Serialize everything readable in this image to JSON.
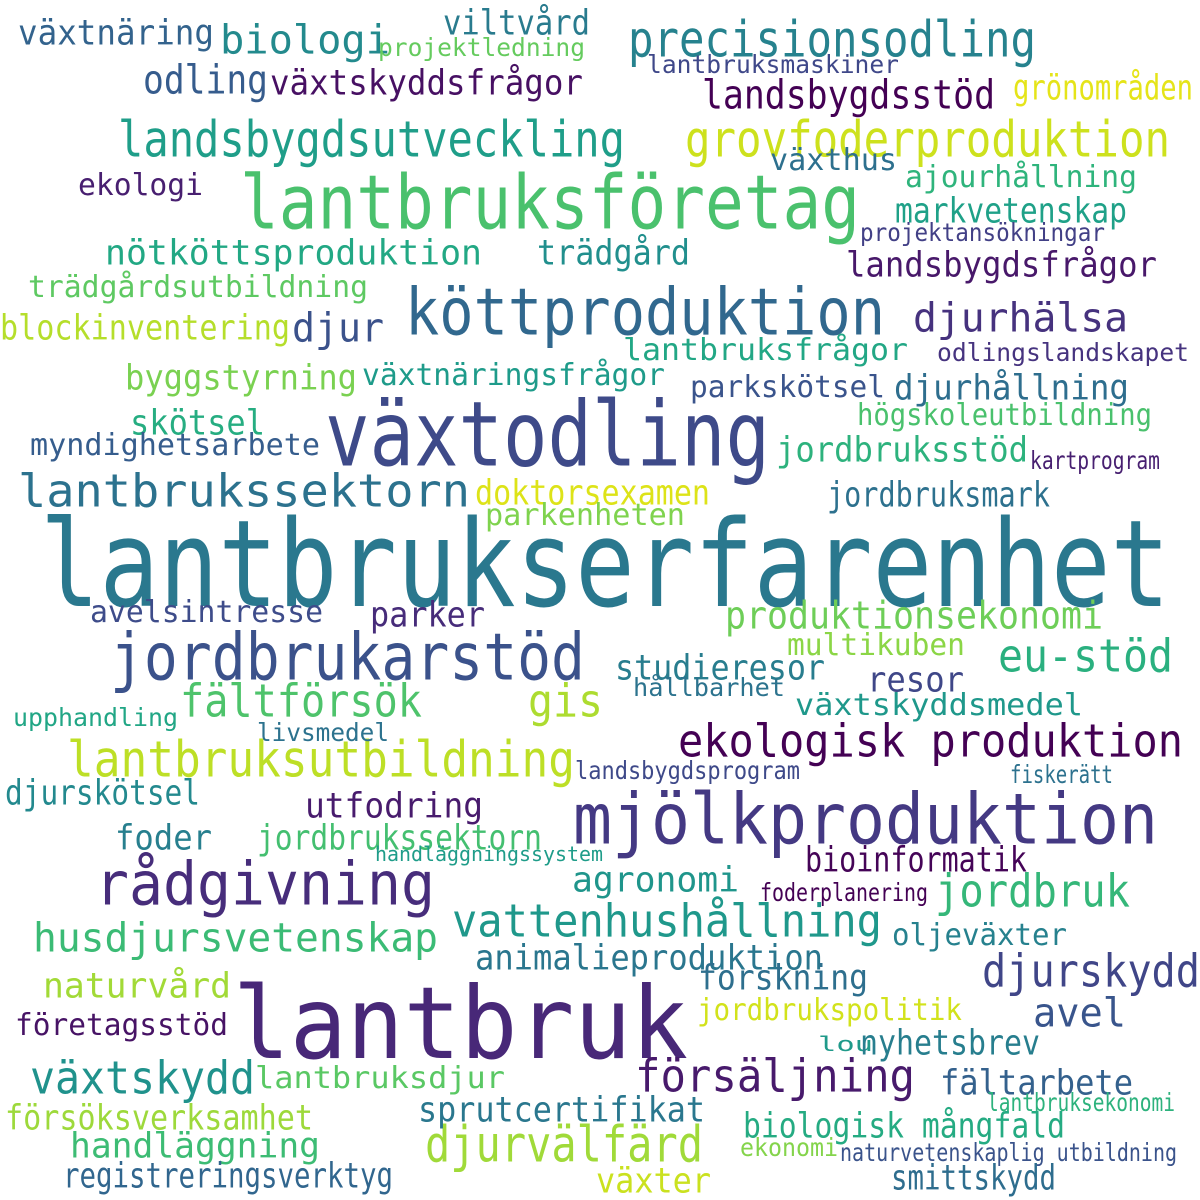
{
  "words": [
    {
      "text": "lantbrukserfarenhet",
      "color": "#2a788e"
    },
    {
      "text": "lantbruk",
      "color": "#482878"
    },
    {
      "text": "växtodling",
      "color": "#3e4a89"
    },
    {
      "text": "lantbruksföretag",
      "color": "#4ac16d"
    },
    {
      "text": "köttproduktion",
      "color": "#31688e"
    },
    {
      "text": "mjölkproduktion",
      "color": "#443983"
    },
    {
      "text": "jordbrukarstöd",
      "color": "#3b528b"
    },
    {
      "text": "rådgivning",
      "color": "#472d7b"
    },
    {
      "text": "landsbygdsutveckling",
      "color": "#1f9e89"
    },
    {
      "text": "grovfoderproduktion",
      "color": "#cde11d"
    },
    {
      "text": "precisionsodling",
      "color": "#26828e"
    },
    {
      "text": "lantbrukssektorn",
      "color": "#2c728e"
    },
    {
      "text": "lantbruksutbildning",
      "color": "#bddf26"
    },
    {
      "text": "ekologisk produktion",
      "color": "#440154"
    },
    {
      "text": "vattenhushållning",
      "color": "#1f988b"
    },
    {
      "text": "husdjursvetenskap",
      "color": "#3bbb75"
    },
    {
      "text": "djurvälfärd",
      "color": "#a0da39"
    },
    {
      "text": "försäljning",
      "color": "#481a6c"
    },
    {
      "text": "växtskydd",
      "color": "#20928c"
    },
    {
      "text": "jordbruk",
      "color": "#35b779"
    },
    {
      "text": "djurskydd",
      "color": "#404688"
    },
    {
      "text": "eu-stöd",
      "color": "#2ab07f"
    },
    {
      "text": "fältförsök",
      "color": "#4ec36b"
    },
    {
      "text": "gis",
      "color": "#addc30"
    },
    {
      "text": "djurhälsa",
      "color": "#46327e"
    },
    {
      "text": "nötköttsproduktion",
      "color": "#22a884"
    },
    {
      "text": "biologi",
      "color": "#238a8d"
    },
    {
      "text": "odling",
      "color": "#365c8d"
    },
    {
      "text": "växtskyddsfrågor",
      "color": "#471063"
    },
    {
      "text": "landsbygdsstöd",
      "color": "#440154"
    },
    {
      "text": "växtnäring",
      "color": "#33638d"
    },
    {
      "text": "viltvård",
      "color": "#297b8e"
    },
    {
      "text": "projektledning",
      "color": "#65cb5e"
    },
    {
      "text": "lantbruksmaskiner",
      "color": "#3f4889"
    },
    {
      "text": "grönområden",
      "color": "#e5e419"
    },
    {
      "text": "ekologi",
      "color": "#481f70"
    },
    {
      "text": "växthus",
      "color": "#2d708e"
    },
    {
      "text": "ajourhållning",
      "color": "#2fb47c"
    },
    {
      "text": "markvetenskap",
      "color": "#1fa188"
    },
    {
      "text": "projektansökningar",
      "color": "#424086"
    },
    {
      "text": "trädgård",
      "color": "#218f8d"
    },
    {
      "text": "landsbygdsfrågor",
      "color": "#48186a"
    },
    {
      "text": "trädgårdsutbildning",
      "color": "#5ec962"
    },
    {
      "text": "blockinventering",
      "color": "#b5de2b"
    },
    {
      "text": "djur",
      "color": "#3b528b"
    },
    {
      "text": "lantbruksfrågor",
      "color": "#22a785"
    },
    {
      "text": "odlingslandskapet",
      "color": "#46337f"
    },
    {
      "text": "byggstyrning",
      "color": "#7ad151"
    },
    {
      "text": "växtnäringsfrågor",
      "color": "#1e9b8a"
    },
    {
      "text": "parkskötsel",
      "color": "#3a548c"
    },
    {
      "text": "djurhållning",
      "color": "#2e6e8e"
    },
    {
      "text": "skötsel",
      "color": "#26ad81"
    },
    {
      "text": "högskoleutbildning",
      "color": "#4ac16d"
    },
    {
      "text": "myndighetsarbete",
      "color": "#365d8d"
    },
    {
      "text": "jordbruksstöd",
      "color": "#2db27d"
    },
    {
      "text": "kartprogram",
      "color": "#482071"
    },
    {
      "text": "doktorsexamen",
      "color": "#dde318"
    },
    {
      "text": "parkenheten",
      "color": "#7fd34e"
    },
    {
      "text": "jordbruksmark",
      "color": "#2d718e"
    },
    {
      "text": "avelsintresse",
      "color": "#3e4c8a"
    },
    {
      "text": "parker",
      "color": "#472c7a"
    },
    {
      "text": "produktionsekonomi",
      "color": "#6ece58"
    },
    {
      "text": "multikuben",
      "color": "#8bd646"
    },
    {
      "text": "studieresor",
      "color": "#287d8e"
    },
    {
      "text": "resor",
      "color": "#3f4788"
    },
    {
      "text": "hållbarhet",
      "color": "#2c738e"
    },
    {
      "text": "växtskyddsmedel",
      "color": "#1f988b"
    },
    {
      "text": "upphandling",
      "color": "#21a685"
    },
    {
      "text": "livsmedel",
      "color": "#2c728e"
    },
    {
      "text": "landsbygdsprogram",
      "color": "#3e4989"
    },
    {
      "text": "fiskerätt",
      "color": "#2c718e"
    },
    {
      "text": "djurskötsel",
      "color": "#23898e"
    },
    {
      "text": "utfodring",
      "color": "#481b6d"
    },
    {
      "text": "foder",
      "color": "#277f8e"
    },
    {
      "text": "jordbrukssektorn",
      "color": "#44bf70"
    },
    {
      "text": "handläggningssystem",
      "color": "#1e9c89"
    },
    {
      "text": "bioinformatik",
      "color": "#450457"
    },
    {
      "text": "agronomi",
      "color": "#1f958b"
    },
    {
      "text": "foderplanering",
      "color": "#440154"
    },
    {
      "text": "oljeväxter",
      "color": "#26818e"
    },
    {
      "text": "animalieproduktion",
      "color": "#2a768e"
    },
    {
      "text": "forskning",
      "color": "#2e6f8e"
    },
    {
      "text": "naturvård",
      "color": "#a2da37"
    },
    {
      "text": "avel",
      "color": "#39558c"
    },
    {
      "text": "företagsstöd",
      "color": "#471365"
    },
    {
      "text": "jordbrukspolitik",
      "color": "#d2e21b"
    },
    {
      "text": "lou",
      "color": "#1f9a8a"
    },
    {
      "text": "nyhetsbrev",
      "color": "#277e8e"
    },
    {
      "text": "lantbruksdjur",
      "color": "#5ac864"
    },
    {
      "text": "fältarbete",
      "color": "#34618d"
    },
    {
      "text": "försöksverksamhet",
      "color": "#9dd93b"
    },
    {
      "text": "sprutcertifikat",
      "color": "#2a778e"
    },
    {
      "text": "lantbruksekonomi",
      "color": "#2db27d"
    },
    {
      "text": "biologisk mångfald",
      "color": "#25ab82"
    },
    {
      "text": "handläggning",
      "color": "#3dbc74"
    },
    {
      "text": "ekonomi",
      "color": "#84d44b"
    },
    {
      "text": "naturvetenskaplig utbildning",
      "color": "#3a538b"
    },
    {
      "text": "registreringsverktyg",
      "color": "#31668e"
    },
    {
      "text": "växter",
      "color": "#cae11f"
    },
    {
      "text": "smittskydd",
      "color": "#2e6d8e"
    }
  ]
}
